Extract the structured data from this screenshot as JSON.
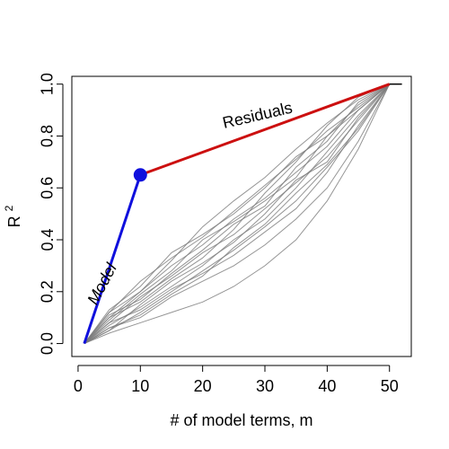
{
  "chart_data": {
    "type": "line",
    "title": "",
    "xlabel": "# of model terms, m",
    "ylabel_base": "R",
    "ylabel_superscript": "2",
    "xlim": [
      -1,
      53.5
    ],
    "ylim": [
      -0.05,
      1.03
    ],
    "x_ticks": [
      0,
      10,
      20,
      30,
      40,
      50
    ],
    "x_tick_labels": [
      "0",
      "10",
      "20",
      "30",
      "40",
      "50"
    ],
    "y_ticks": [
      0.0,
      0.2,
      0.4,
      0.6,
      0.8,
      1.0
    ],
    "y_tick_labels": [
      "0.0",
      "0.2",
      "0.4",
      "0.6",
      "0.8",
      "1.0"
    ],
    "grid": false,
    "colors": {
      "model": "#1010dd",
      "residuals": "#cc1010",
      "random": "#7a7a7a",
      "marker": "#1010dd",
      "end_segment": "#000000"
    },
    "series": [
      {
        "name": "Model",
        "x": [
          1,
          10
        ],
        "y": [
          0.0,
          0.65
        ]
      },
      {
        "name": "Residuals",
        "x": [
          10,
          50
        ],
        "y": [
          0.65,
          1.0
        ]
      }
    ],
    "marker_point": {
      "x": 10,
      "y": 0.65
    },
    "end_segment": {
      "x": [
        50,
        52
      ],
      "y": [
        1.0,
        1.0
      ]
    },
    "random_series": [
      {
        "x": [
          1,
          5,
          10,
          15,
          20,
          25,
          30,
          35,
          40,
          45,
          50
        ],
        "y": [
          0.0,
          0.05,
          0.12,
          0.2,
          0.28,
          0.36,
          0.45,
          0.55,
          0.68,
          0.82,
          1.0
        ]
      },
      {
        "x": [
          1,
          5,
          10,
          15,
          20,
          25,
          30,
          35,
          40,
          45,
          50
        ],
        "y": [
          0.0,
          0.1,
          0.2,
          0.3,
          0.38,
          0.48,
          0.56,
          0.66,
          0.76,
          0.9,
          1.0
        ]
      },
      {
        "x": [
          1,
          5,
          10,
          15,
          20,
          25,
          30,
          35,
          40,
          45,
          50
        ],
        "y": [
          0.0,
          0.08,
          0.18,
          0.26,
          0.35,
          0.42,
          0.52,
          0.62,
          0.72,
          0.86,
          1.0
        ]
      },
      {
        "x": [
          1,
          5,
          10,
          15,
          20,
          25,
          30,
          35,
          40,
          45,
          50
        ],
        "y": [
          0.0,
          0.13,
          0.22,
          0.35,
          0.42,
          0.5,
          0.6,
          0.72,
          0.8,
          0.92,
          1.0
        ]
      },
      {
        "x": [
          1,
          5,
          10,
          15,
          20,
          25,
          30,
          35,
          40,
          45,
          50
        ],
        "y": [
          0.0,
          0.06,
          0.1,
          0.18,
          0.24,
          0.3,
          0.38,
          0.48,
          0.6,
          0.78,
          1.0
        ]
      },
      {
        "x": [
          1,
          5,
          10,
          15,
          20,
          25,
          30,
          35,
          40,
          45,
          50
        ],
        "y": [
          0.0,
          0.1,
          0.16,
          0.25,
          0.33,
          0.44,
          0.58,
          0.7,
          0.84,
          0.95,
          1.0
        ]
      },
      {
        "x": [
          1,
          5,
          10,
          15,
          20,
          25,
          30,
          35,
          40,
          45,
          50
        ],
        "y": [
          0.0,
          0.07,
          0.14,
          0.22,
          0.3,
          0.4,
          0.48,
          0.6,
          0.74,
          0.88,
          1.0
        ]
      },
      {
        "x": [
          1,
          5,
          10,
          15,
          20,
          25,
          30,
          35,
          40,
          45,
          50
        ],
        "y": [
          0.0,
          0.12,
          0.2,
          0.32,
          0.45,
          0.55,
          0.64,
          0.75,
          0.85,
          0.94,
          1.0
        ]
      },
      {
        "x": [
          1,
          5,
          10,
          15,
          20,
          25,
          30,
          35,
          40,
          45,
          50
        ],
        "y": [
          0.0,
          0.04,
          0.08,
          0.12,
          0.16,
          0.22,
          0.3,
          0.4,
          0.55,
          0.75,
          1.0
        ]
      },
      {
        "x": [
          1,
          5,
          10,
          15,
          20,
          25,
          30,
          35,
          40,
          45,
          50
        ],
        "y": [
          0.0,
          0.09,
          0.19,
          0.28,
          0.4,
          0.47,
          0.55,
          0.64,
          0.8,
          0.9,
          1.0
        ]
      },
      {
        "x": [
          1,
          5,
          10,
          15,
          20,
          25,
          30,
          35,
          40,
          45,
          50
        ],
        "y": [
          0.0,
          0.11,
          0.17,
          0.27,
          0.36,
          0.46,
          0.53,
          0.68,
          0.78,
          0.93,
          1.0
        ]
      },
      {
        "x": [
          1,
          5,
          10,
          15,
          20,
          25,
          30,
          35,
          40,
          45,
          50
        ],
        "y": [
          0.0,
          0.05,
          0.15,
          0.24,
          0.31,
          0.39,
          0.5,
          0.63,
          0.7,
          0.87,
          1.0
        ]
      },
      {
        "x": [
          1,
          5,
          10,
          15,
          20,
          25,
          30,
          35,
          40,
          45,
          50
        ],
        "y": [
          0.0,
          0.08,
          0.13,
          0.21,
          0.27,
          0.34,
          0.43,
          0.52,
          0.66,
          0.84,
          1.0
        ]
      },
      {
        "x": [
          1,
          5,
          10,
          15,
          20,
          25,
          30,
          35,
          40,
          45,
          50
        ],
        "y": [
          0.0,
          0.12,
          0.24,
          0.33,
          0.41,
          0.51,
          0.61,
          0.71,
          0.82,
          0.91,
          1.0
        ]
      },
      {
        "x": [
          1,
          5,
          10,
          15,
          20,
          25,
          30,
          35,
          40,
          45,
          50
        ],
        "y": [
          0.0,
          0.06,
          0.11,
          0.19,
          0.26,
          0.37,
          0.46,
          0.58,
          0.69,
          0.83,
          1.0
        ]
      }
    ],
    "annotations": [
      {
        "text": "Model",
        "x": 4.6,
        "y": 0.22,
        "angle_deg": -62,
        "style": "italic"
      },
      {
        "text": "Residuals",
        "x": 29,
        "y": 0.86,
        "angle_deg": -13,
        "style": "normal"
      }
    ]
  }
}
